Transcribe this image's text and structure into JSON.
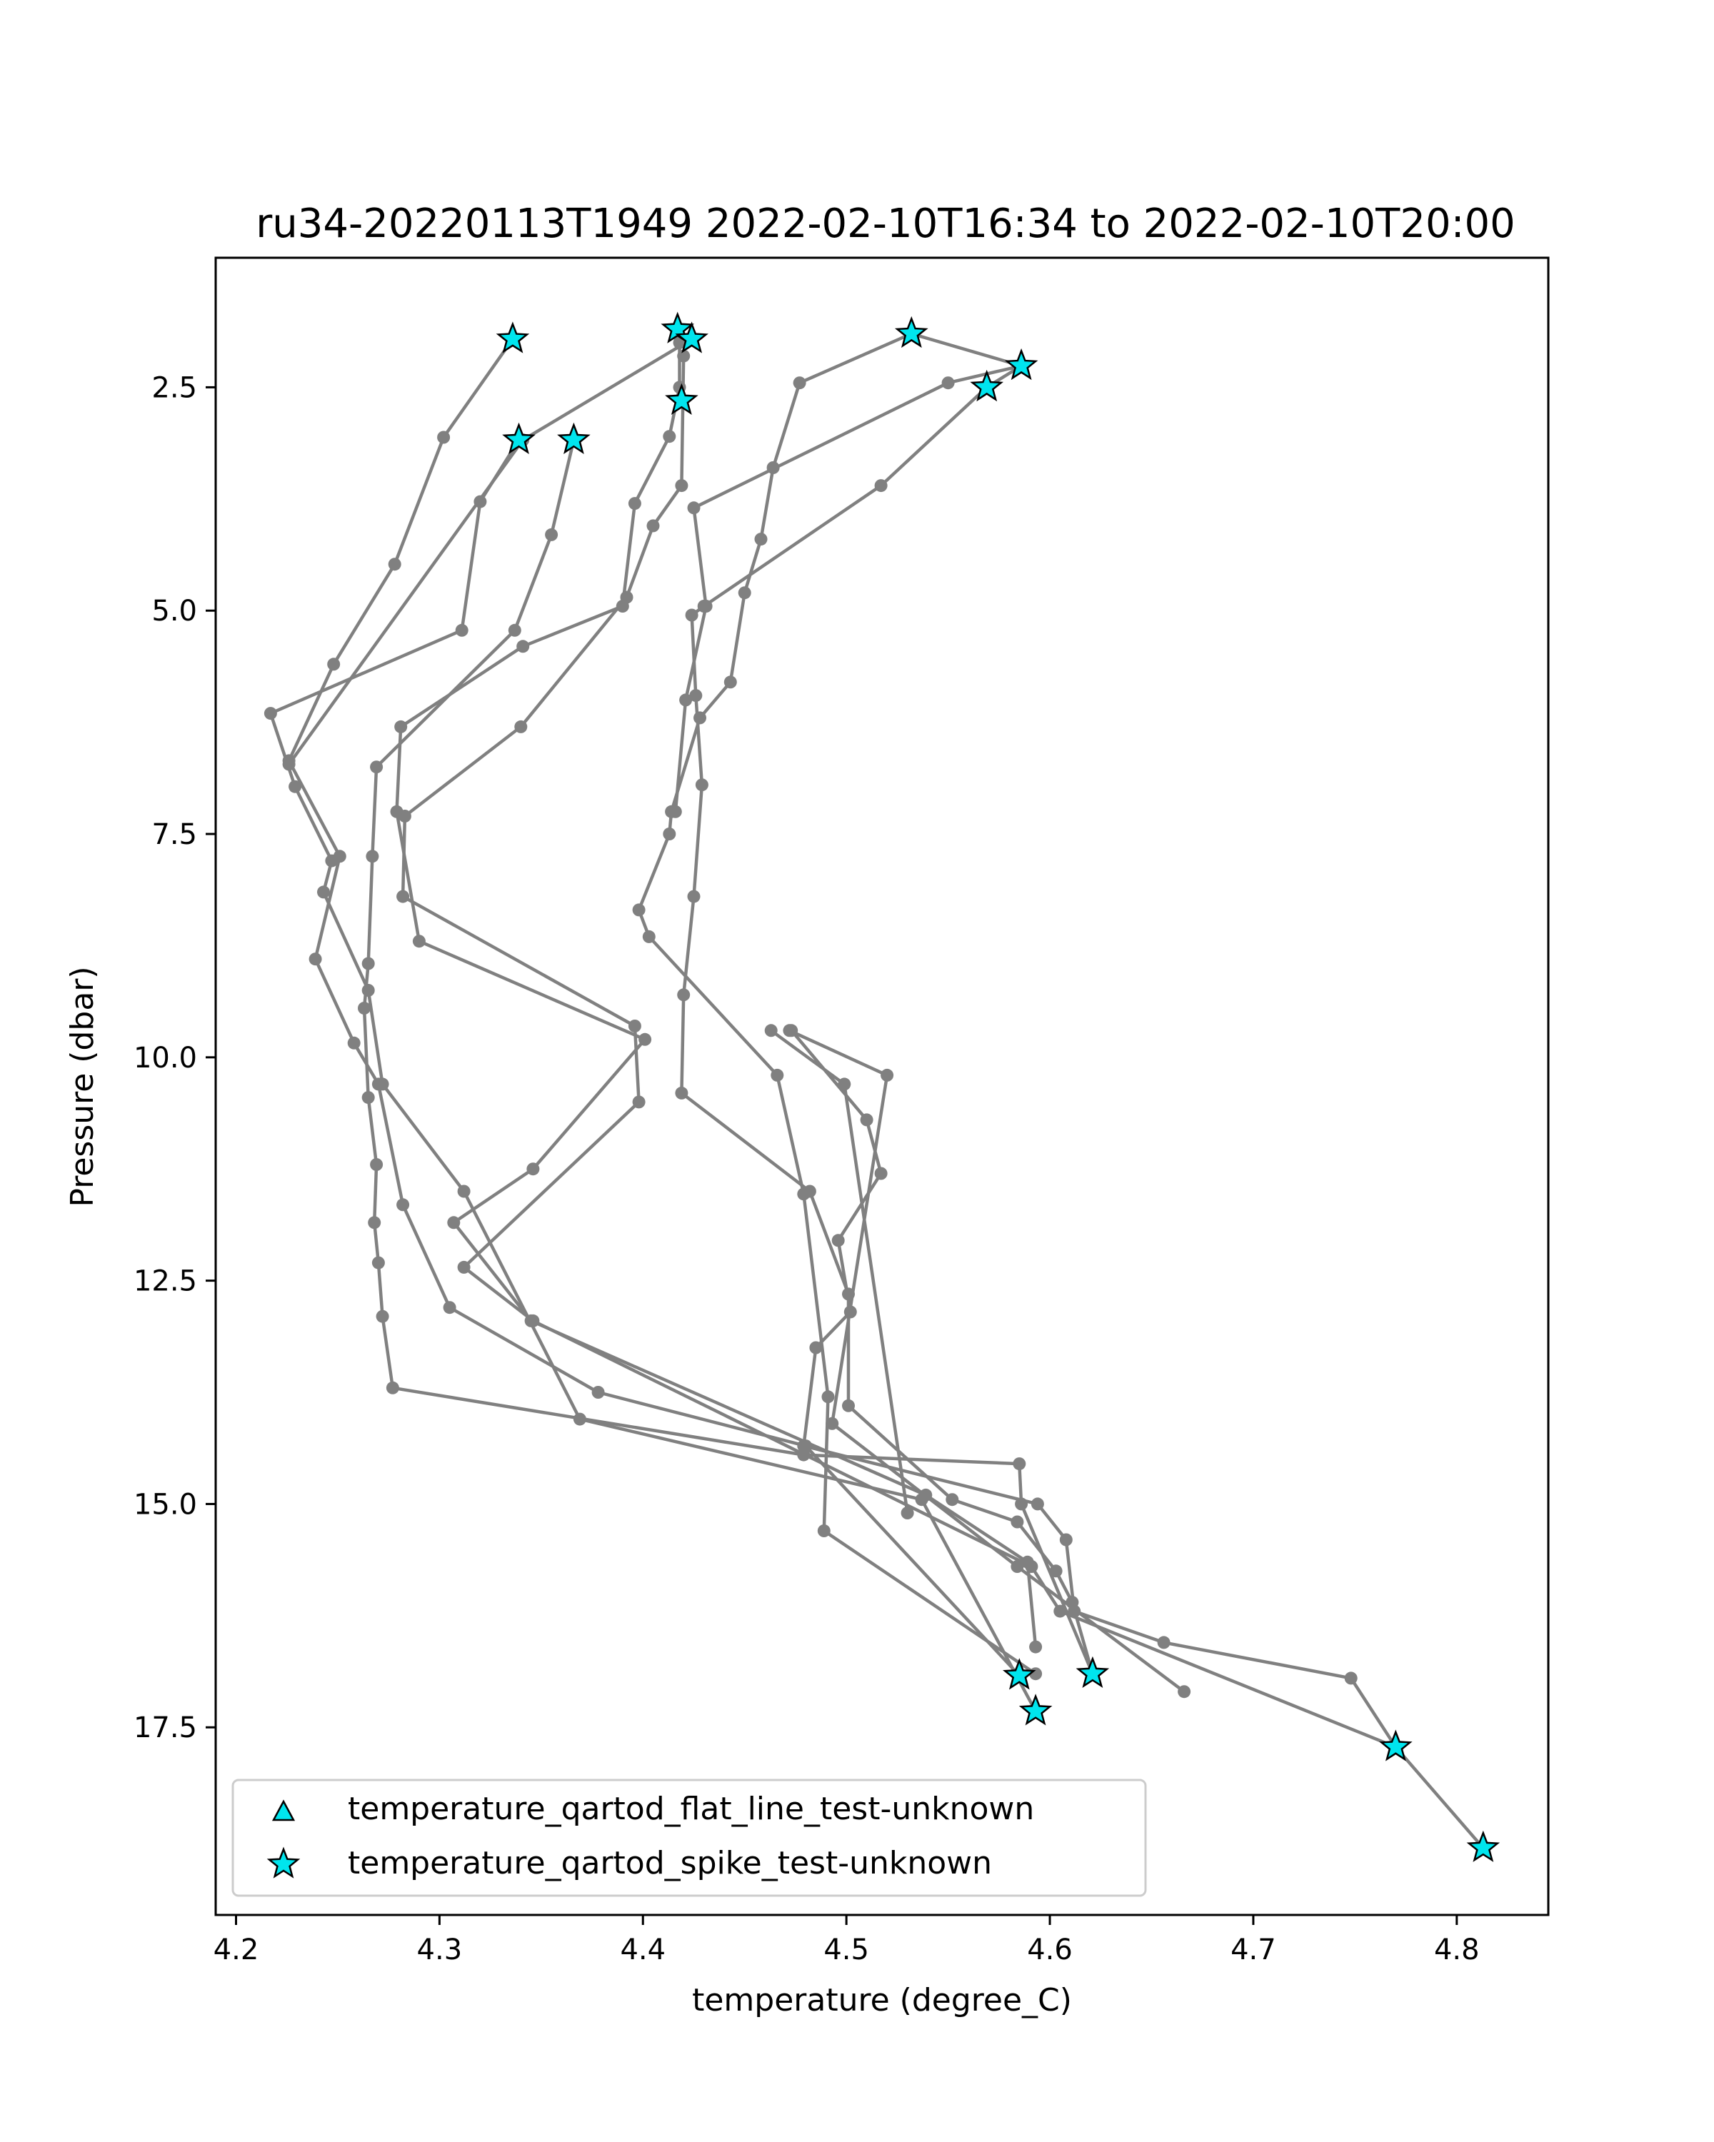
{
  "chart_data": {
    "type": "line",
    "title": "ru34-20220113T1949 2022-02-10T16:34 to 2022-02-10T20:00",
    "xlabel": "temperature (degree_C)",
    "ylabel": "Pressure (dbar)",
    "xlim": [
      4.19,
      4.845
    ],
    "ylim": [
      19.6,
      1.05
    ],
    "y_inverted": true,
    "xticks": [
      "4.2",
      "4.3",
      "4.4",
      "4.5",
      "4.6",
      "4.7",
      "4.8"
    ],
    "yticks": [
      "2.5",
      "5.0",
      "7.5",
      "10.0",
      "12.5",
      "15.0",
      "17.5"
    ],
    "line_color": "#808080",
    "marker_color": "#00e5ee",
    "grid": false,
    "legend_position": "lower-left",
    "series": [
      {
        "points": [
          [
            4.336,
            1.96
          ],
          [
            4.302,
            3.06
          ],
          [
            4.278,
            4.48
          ],
          [
            4.248,
            5.6
          ],
          [
            4.226,
            6.68
          ],
          [
            4.251,
            7.75
          ],
          [
            4.239,
            8.9
          ],
          [
            4.258,
            9.84
          ],
          [
            4.27,
            10.3
          ],
          [
            4.282,
            11.65
          ],
          [
            4.305,
            12.8
          ],
          [
            4.378,
            13.75
          ],
          [
            4.48,
            14.35
          ],
          [
            4.585,
            16.92
          ]
        ]
      },
      {
        "points": [
          [
            4.339,
            3.09
          ],
          [
            4.32,
            3.78
          ],
          [
            4.311,
            5.22
          ],
          [
            4.217,
            6.15
          ],
          [
            4.229,
            6.97
          ],
          [
            4.247,
            7.8
          ],
          [
            4.243,
            8.15
          ],
          [
            4.265,
            9.25
          ],
          [
            4.272,
            10.3
          ],
          [
            4.312,
            11.5
          ],
          [
            4.369,
            14.05
          ],
          [
            4.537,
            14.95
          ],
          [
            4.593,
            17.32
          ]
        ]
      },
      {
        "points": [
          [
            4.366,
            3.09
          ],
          [
            4.355,
            4.15
          ],
          [
            4.337,
            5.22
          ],
          [
            4.269,
            6.75
          ],
          [
            4.267,
            7.75
          ],
          [
            4.265,
            8.95
          ],
          [
            4.263,
            9.45
          ],
          [
            4.265,
            10.45
          ],
          [
            4.269,
            11.2
          ],
          [
            4.268,
            11.85
          ],
          [
            4.27,
            12.3
          ],
          [
            4.272,
            12.9
          ],
          [
            4.277,
            13.7
          ],
          [
            4.479,
            14.45
          ],
          [
            4.585,
            14.55
          ],
          [
            4.586,
            15.0
          ],
          [
            4.621,
            16.9
          ]
        ]
      },
      {
        "points": [
          [
            4.417,
            1.85
          ],
          [
            4.418,
            2.0
          ],
          [
            4.418,
            2.5
          ],
          [
            4.413,
            3.05
          ],
          [
            4.396,
            3.8
          ],
          [
            4.39,
            4.95
          ],
          [
            4.341,
            5.4
          ],
          [
            4.281,
            6.3
          ],
          [
            4.279,
            7.25
          ],
          [
            4.29,
            8.7
          ],
          [
            4.401,
            9.8
          ],
          [
            4.346,
            11.25
          ],
          [
            4.307,
            11.85
          ],
          [
            4.345,
            12.95
          ],
          [
            4.539,
            14.9
          ],
          [
            4.589,
            15.65
          ],
          [
            4.593,
            16.6
          ]
        ]
      },
      {
        "points": [
          [
            4.424,
            1.96
          ],
          [
            4.341,
            3.09
          ],
          [
            4.226,
            6.72
          ]
        ]
      },
      {
        "points": [
          [
            4.42,
            2.15
          ],
          [
            4.419,
            3.6
          ],
          [
            4.405,
            4.05
          ],
          [
            4.392,
            4.85
          ],
          [
            4.34,
            6.3
          ],
          [
            4.283,
            7.3
          ],
          [
            4.282,
            8.2
          ],
          [
            4.396,
            9.65
          ],
          [
            4.398,
            10.5
          ],
          [
            4.312,
            12.35
          ],
          [
            4.346,
            12.95
          ],
          [
            4.591,
            15.7
          ],
          [
            4.605,
            16.2
          ],
          [
            4.77,
            17.72
          ]
        ]
      },
      {
        "points": [
          [
            4.532,
            1.9
          ],
          [
            4.477,
            2.45
          ],
          [
            4.464,
            3.4
          ],
          [
            4.458,
            4.2
          ],
          [
            4.45,
            4.8
          ],
          [
            4.443,
            5.8
          ],
          [
            4.428,
            6.2
          ],
          [
            4.414,
            7.25
          ],
          [
            4.413,
            7.5
          ],
          [
            4.398,
            8.35
          ],
          [
            4.403,
            8.65
          ],
          [
            4.466,
            10.2
          ],
          [
            4.479,
            11.53
          ],
          [
            4.491,
            13.8
          ],
          [
            4.489,
            15.3
          ],
          [
            4.593,
            16.9
          ]
        ]
      },
      {
        "points": [
          [
            4.532,
            1.9
          ],
          [
            4.586,
            2.26
          ],
          [
            4.569,
            2.5
          ]
        ]
      },
      {
        "points": [
          [
            4.586,
            2.26
          ],
          [
            4.55,
            2.45
          ],
          [
            4.425,
            3.85
          ],
          [
            4.431,
            4.95
          ],
          [
            4.421,
            6.0
          ],
          [
            4.416,
            7.25
          ]
        ]
      },
      {
        "points": [
          [
            4.569,
            2.5
          ],
          [
            4.517,
            3.6
          ],
          [
            4.43,
            4.95
          ],
          [
            4.424,
            5.05
          ],
          [
            4.426,
            5.95
          ],
          [
            4.429,
            6.95
          ],
          [
            4.425,
            8.2
          ],
          [
            4.42,
            9.3
          ],
          [
            4.419,
            10.4
          ],
          [
            4.482,
            11.5
          ],
          [
            4.501,
            12.65
          ],
          [
            4.501,
            13.9
          ],
          [
            4.552,
            14.95
          ],
          [
            4.584,
            15.2
          ],
          [
            4.603,
            15.75
          ],
          [
            4.611,
            16.1
          ],
          [
            4.621,
            16.9
          ]
        ]
      },
      {
        "points": [
          [
            4.473,
            9.7
          ],
          [
            4.51,
            10.7
          ],
          [
            4.517,
            11.3
          ],
          [
            4.496,
            12.05
          ],
          [
            4.502,
            12.85
          ],
          [
            4.485,
            13.25
          ],
          [
            4.479,
            14.35
          ],
          [
            4.594,
            15.0
          ],
          [
            4.608,
            15.4
          ],
          [
            4.612,
            16.2
          ],
          [
            4.656,
            16.55
          ],
          [
            4.748,
            16.95
          ],
          [
            4.77,
            17.72
          ],
          [
            4.813,
            18.85
          ]
        ]
      },
      {
        "points": [
          [
            4.472,
            9.7
          ],
          [
            4.52,
            10.2
          ],
          [
            4.493,
            14.1
          ],
          [
            4.584,
            15.7
          ],
          [
            4.666,
            17.1
          ]
        ]
      },
      {
        "points": [
          [
            4.463,
            9.7
          ],
          [
            4.499,
            10.3
          ],
          [
            4.53,
            15.1
          ]
        ]
      }
    ],
    "spike_markers": [
      [
        4.336,
        1.96
      ],
      [
        4.417,
        1.85
      ],
      [
        4.424,
        1.96
      ],
      [
        4.532,
        1.9
      ],
      [
        4.586,
        2.26
      ],
      [
        4.569,
        2.5
      ],
      [
        4.419,
        2.65
      ],
      [
        4.339,
        3.09
      ],
      [
        4.366,
        3.09
      ],
      [
        4.585,
        16.92
      ],
      [
        4.621,
        16.9
      ],
      [
        4.593,
        17.32
      ],
      [
        4.77,
        17.72
      ],
      [
        4.813,
        18.85
      ]
    ],
    "legend": [
      {
        "label": "temperature_qartod_flat_line_test-unknown",
        "marker": "triangle"
      },
      {
        "label": "temperature_qartod_spike_test-unknown",
        "marker": "star"
      }
    ]
  }
}
